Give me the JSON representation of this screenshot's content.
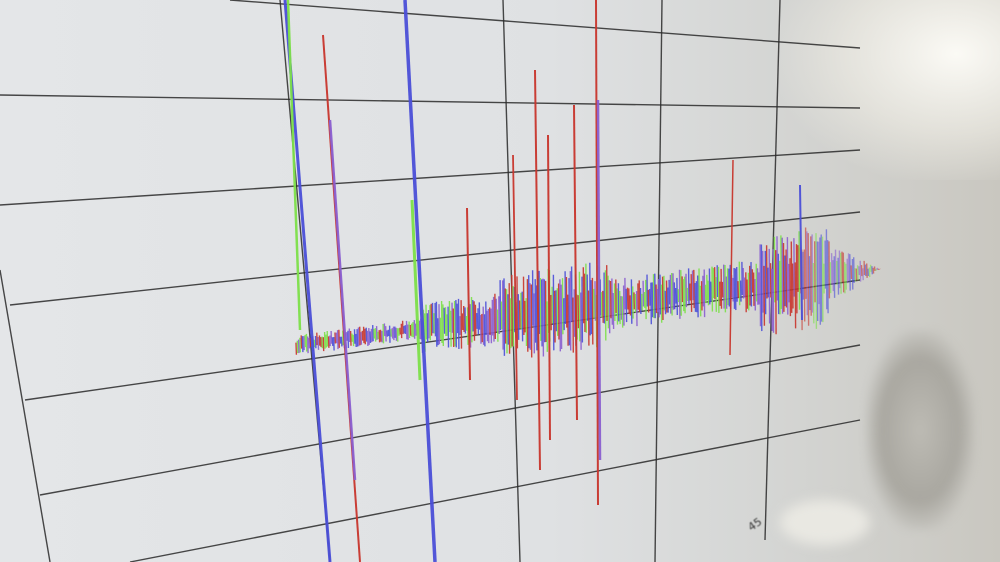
{
  "scene": {
    "description_tag": "",
    "tick_label": "45",
    "colors": {
      "grid": "#2a2a2a",
      "trace_blue": "#4b4fd8",
      "trace_red": "#c8352c",
      "trace_green": "#7de04a",
      "trace_purple": "#8a5fd0"
    }
  }
}
